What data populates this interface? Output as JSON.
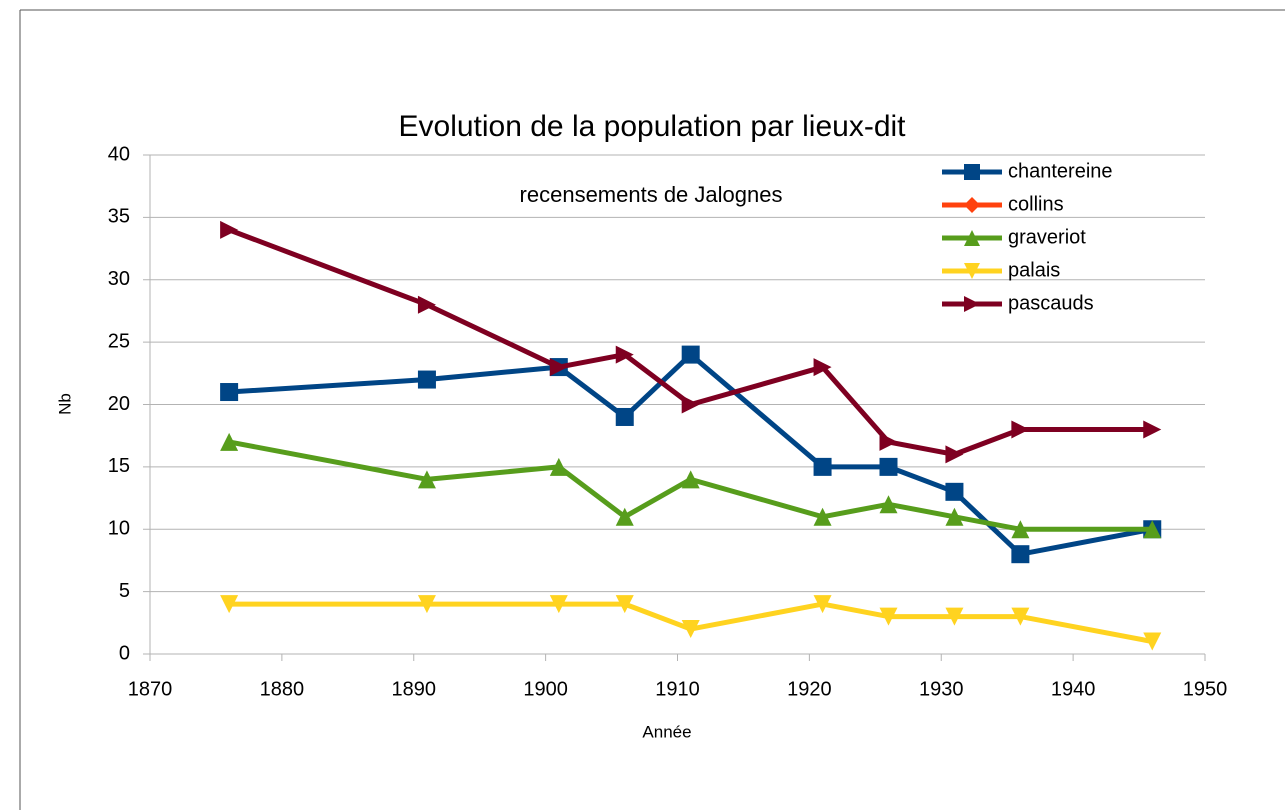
{
  "chart_data": {
    "type": "line",
    "title": "Evolution de la population par lieux-dit",
    "annotation": "recensements de Jalognes",
    "x_label": "Année",
    "y_label": "Nb",
    "x": [
      1876,
      1891,
      1901,
      1906,
      1911,
      1921,
      1926,
      1931,
      1936,
      1946
    ],
    "series": [
      {
        "name": "chantereine",
        "color": "#004586",
        "marker": "square",
        "values": [
          21,
          22,
          23,
          19,
          24,
          15,
          15,
          13,
          8,
          10
        ]
      },
      {
        "name": "collins",
        "color": "#ff420e",
        "marker": "diamond",
        "values": [
          null,
          null,
          null,
          null,
          null,
          null,
          null,
          null,
          null,
          null
        ]
      },
      {
        "name": "graveriot",
        "color": "#579d1c",
        "marker": "triangle-up",
        "values": [
          17,
          14,
          15,
          11,
          14,
          11,
          12,
          11,
          10,
          10
        ]
      },
      {
        "name": "palais",
        "color": "#ffd320",
        "marker": "triangle-down",
        "values": [
          4,
          4,
          4,
          4,
          2,
          4,
          3,
          3,
          3,
          1
        ]
      },
      {
        "name": "pascauds",
        "color": "#7e0021",
        "marker": "triangle-right",
        "values": [
          34,
          28,
          23,
          24,
          20,
          23,
          17,
          16,
          18,
          18
        ]
      }
    ],
    "xlim": [
      1870,
      1950
    ],
    "xticks": [
      1870,
      1880,
      1890,
      1900,
      1910,
      1920,
      1930,
      1940,
      1950
    ],
    "ylim": [
      0,
      40
    ],
    "yticks": [
      0,
      5,
      10,
      15,
      20,
      25,
      30,
      35,
      40
    ],
    "grid": true,
    "legend": "top-right"
  }
}
